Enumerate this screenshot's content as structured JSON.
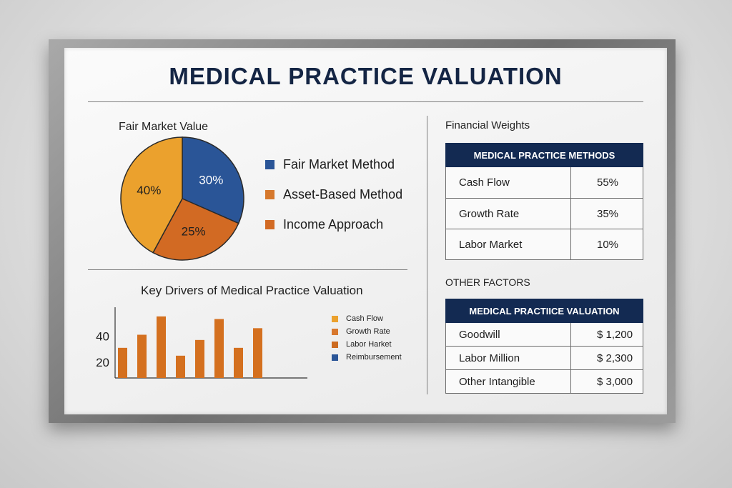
{
  "title": "MEDICAL PRACTICE VALUATION",
  "pie_section": {
    "heading": "Fair Market Value"
  },
  "bar_section": {
    "heading": "Key Drivers of Medical Practice Valuation"
  },
  "weights_section": {
    "heading": "Financial Weights",
    "table_header": "MEDICAL PRACTICE  METHODS",
    "rows": [
      {
        "label": "Cash Flow",
        "value": "55%"
      },
      {
        "label": "Growth Rate",
        "value": "35%"
      },
      {
        "label": "Labor Market",
        "value": "10%"
      }
    ]
  },
  "factors_section": {
    "heading": "OTHER FACTORS",
    "table_header": "MEDICAL PRACTIICE  VALUATION",
    "rows": [
      {
        "label": "Goodwill",
        "value": "$ 1,200"
      },
      {
        "label": "Labor Million",
        "value": "$ 2,300"
      },
      {
        "label": "Other Intangible",
        "value": "$ 3,000"
      }
    ]
  },
  "chart_data": [
    {
      "type": "pie",
      "title": "Fair Market Value",
      "slices": [
        {
          "label": "Fair Market Method",
          "display": "30%",
          "value": 30,
          "color": "#2a5597"
        },
        {
          "label": "Income Approach",
          "display": "25%",
          "value": 25,
          "color": "#d26a23"
        },
        {
          "label": "Asset-Based Method",
          "display": "40%",
          "value": 40,
          "color": "#eba12d"
        }
      ],
      "legend": [
        {
          "label": "Fair Market Method",
          "color": "#2a5597"
        },
        {
          "label": "Asset-Based Method",
          "color": "#d6782c"
        },
        {
          "label": "Income Approach",
          "color": "#d26a23"
        }
      ],
      "legend_position": "right"
    },
    {
      "type": "bar",
      "title": "Key Drivers of Medical Practice Valuation",
      "values": [
        31,
        41,
        55,
        25,
        37,
        53,
        31,
        46
      ],
      "bar_color": "#d4701f",
      "yticks": [
        20,
        40
      ],
      "ylim": [
        8,
        62
      ],
      "legend": [
        {
          "label": "Cash Flow",
          "color": "#eba12d"
        },
        {
          "label": "Growth Rate",
          "color": "#d8782e"
        },
        {
          "label": "Labor Harket",
          "color": "#cc6a20"
        },
        {
          "label": "Reimbursement",
          "color": "#2a5597"
        }
      ],
      "legend_position": "right"
    }
  ]
}
